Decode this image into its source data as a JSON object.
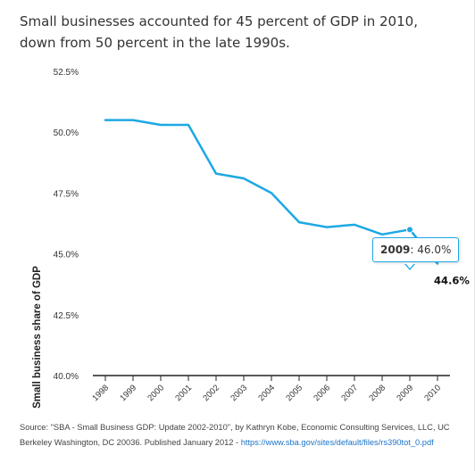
{
  "title": "Small businesses accounted for 45 percent of GDP in 2010, down from 50 percent in the late 1990s.",
  "tooltip": {
    "year": "2009",
    "value": "46.0%"
  },
  "end_label": "44.6%",
  "source": {
    "text": "Source: \"SBA - Small Business GDP: Update 2002-2010\", by Kathryn Kobe, Economic Consulting Services, LLC, UC Berkeley Washington, DC 20036. Published January 2012 - ",
    "link": "https://www.sba.gov/sites/default/files/rs390tot_0.pdf"
  },
  "colors": {
    "line": "#1da8e4",
    "axis": "#222222",
    "grid": "#e6e6e6"
  },
  "chart_data": {
    "type": "line",
    "x": [
      "1998",
      "1999",
      "2000",
      "2001",
      "2002",
      "2003",
      "2004",
      "2005",
      "2006",
      "2007",
      "2008",
      "2009",
      "2010"
    ],
    "series": [
      {
        "values": [
          50.5,
          50.5,
          50.3,
          50.3,
          48.3,
          48.1,
          47.5,
          46.3,
          46.1,
          46.2,
          45.8,
          46.0,
          44.6
        ]
      }
    ],
    "ylabel": "Small business share of GDP",
    "xlabel": "",
    "yticks": [
      "40.0%",
      "42.5%",
      "45.0%",
      "47.5%",
      "50.0%",
      "52.5%"
    ],
    "ylim": [
      40,
      52.5
    ],
    "grid": false,
    "annotations": [
      {
        "x": "2009",
        "text": "2009: 46.0%"
      },
      {
        "x": "2010",
        "text": "44.6%"
      }
    ]
  }
}
